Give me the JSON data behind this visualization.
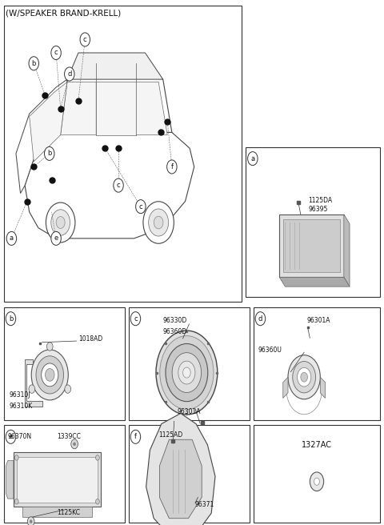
{
  "title": "(W/SPEAKER BRAND-KRELL)",
  "bg": "#ffffff",
  "lc": "#333333",
  "tc": "#111111",
  "panels": {
    "main": [
      0.01,
      0.01,
      0.62,
      0.565
    ],
    "a": [
      0.64,
      0.28,
      0.35,
      0.285
    ],
    "b": [
      0.01,
      0.585,
      0.315,
      0.215
    ],
    "c": [
      0.335,
      0.585,
      0.315,
      0.215
    ],
    "d": [
      0.66,
      0.585,
      0.33,
      0.215
    ],
    "e": [
      0.01,
      0.81,
      0.315,
      0.185
    ],
    "f": [
      0.335,
      0.81,
      0.315,
      0.185
    ],
    "g": [
      0.66,
      0.81,
      0.33,
      0.185
    ]
  },
  "panel_labels": {
    "b": "b",
    "c": "c",
    "d": "d",
    "e": "e",
    "f": "f"
  }
}
